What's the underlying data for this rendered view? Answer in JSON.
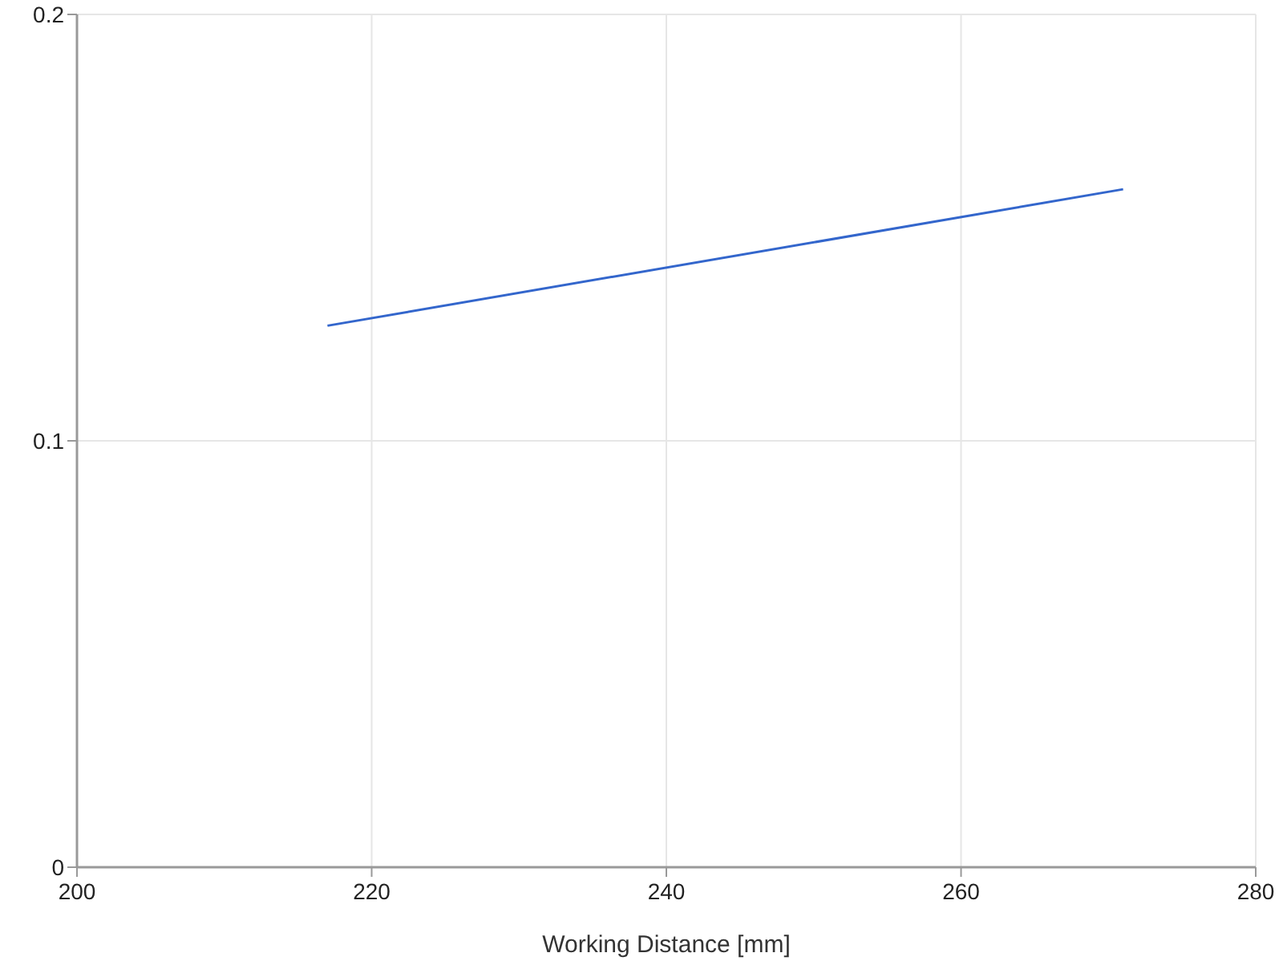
{
  "chart_data": {
    "type": "line",
    "xlabel": "Working Distance [mm]",
    "x": [
      217,
      271
    ],
    "series": [
      {
        "color": "#3366cc",
        "values": [
          0.127,
          0.159
        ]
      }
    ],
    "xlim": [
      200,
      280
    ],
    "xticks": [
      200,
      220,
      240,
      260,
      280
    ],
    "ylim": [
      0,
      0.2
    ],
    "yticks": [
      0,
      0.1,
      0.2
    ],
    "grid": true
  }
}
